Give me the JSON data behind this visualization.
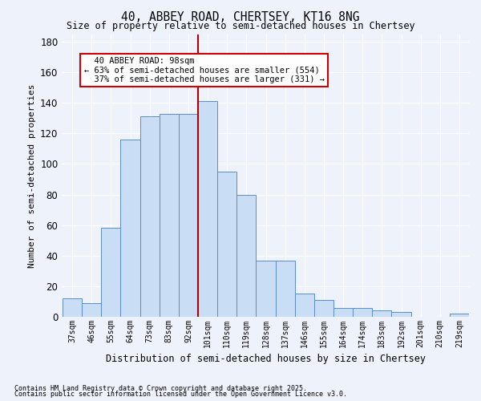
{
  "title1": "40, ABBEY ROAD, CHERTSEY, KT16 8NG",
  "title2": "Size of property relative to semi-detached houses in Chertsey",
  "xlabel": "Distribution of semi-detached houses by size in Chertsey",
  "ylabel": "Number of semi-detached properties",
  "categories": [
    "37sqm",
    "46sqm",
    "55sqm",
    "64sqm",
    "73sqm",
    "83sqm",
    "92sqm",
    "101sqm",
    "110sqm",
    "119sqm",
    "128sqm",
    "137sqm",
    "146sqm",
    "155sqm",
    "164sqm",
    "174sqm",
    "183sqm",
    "192sqm",
    "201sqm",
    "210sqm",
    "219sqm"
  ],
  "values": [
    12,
    9,
    58,
    116,
    131,
    133,
    133,
    141,
    95,
    80,
    37,
    37,
    15,
    11,
    6,
    6,
    4,
    3,
    0,
    0,
    2
  ],
  "bar_color": "#c9ddf5",
  "bar_edge_color": "#5b8dc8",
  "vline_color": "#aa0000",
  "annotation_text": "  40 ABBEY ROAD: 98sqm\n← 63% of semi-detached houses are smaller (554)\n  37% of semi-detached houses are larger (331) →",
  "annotation_box_facecolor": "#ffffff",
  "annotation_box_edgecolor": "#cc0000",
  "ylim": [
    0,
    185
  ],
  "yticks": [
    0,
    20,
    40,
    60,
    80,
    100,
    120,
    140,
    160,
    180
  ],
  "footnote1": "Contains HM Land Registry data © Crown copyright and database right 2025.",
  "footnote2": "Contains public sector information licensed under the Open Government Licence v3.0.",
  "bg_color": "#eef2fb"
}
